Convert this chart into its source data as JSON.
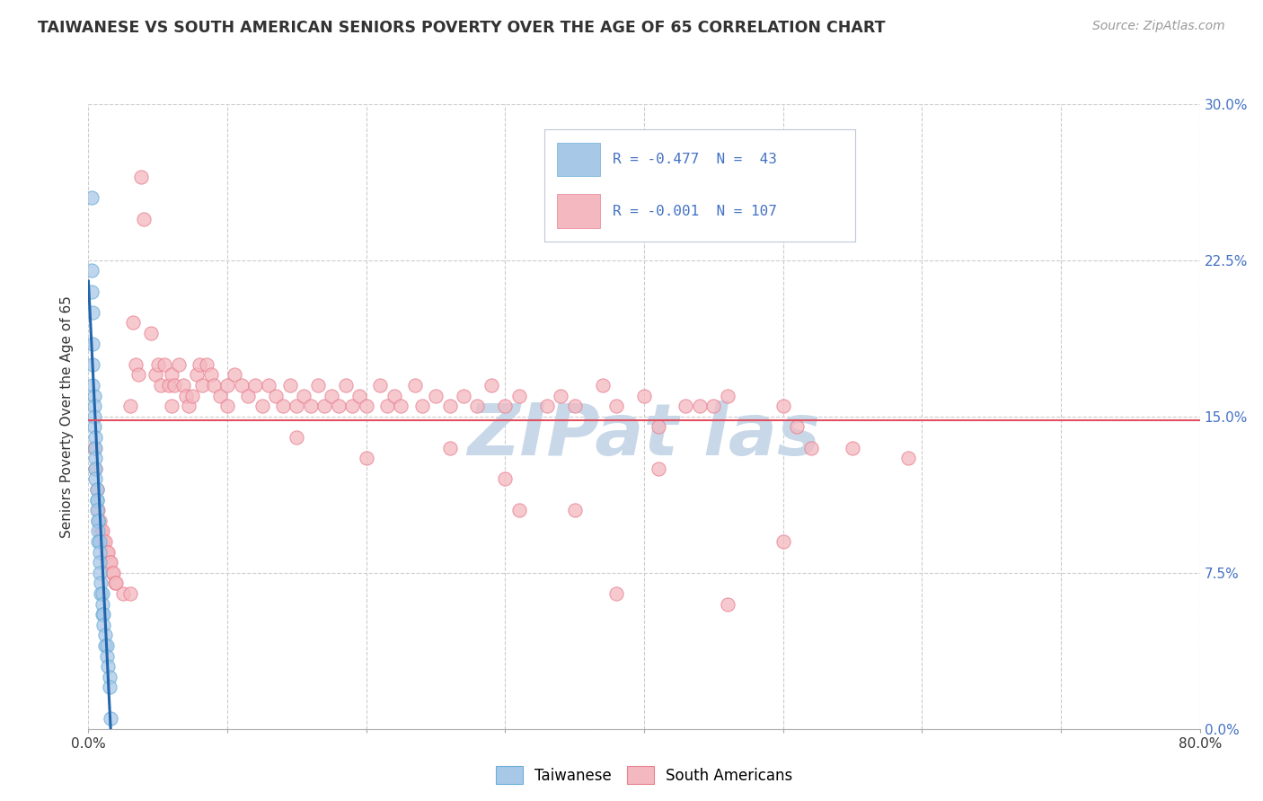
{
  "title": "TAIWANESE VS SOUTH AMERICAN SENIORS POVERTY OVER THE AGE OF 65 CORRELATION CHART",
  "source": "Source: ZipAtlas.com",
  "ylabel": "Seniors Poverty Over the Age of 65",
  "xlim": [
    0,
    0.8
  ],
  "ylim": [
    0,
    0.3
  ],
  "xticks": [
    0.0,
    0.1,
    0.2,
    0.3,
    0.4,
    0.5,
    0.6,
    0.7,
    0.8
  ],
  "xtick_labels": [
    "0.0%",
    "",
    "",
    "",
    "",
    "",
    "",
    "",
    "80.0%"
  ],
  "yticks": [
    0.0,
    0.075,
    0.15,
    0.225,
    0.3
  ],
  "ytick_labels": [
    "0.0%",
    "7.5%",
    "15.0%",
    "22.5%",
    "30.0%"
  ],
  "legend_line1": "R = -0.477  N =  43",
  "legend_line2": "R = -0.001  N = 107",
  "taiwanese_color": "#a8c8e8",
  "taiwanese_edge": "#6baed6",
  "south_american_color": "#f4b8c0",
  "south_american_edge": "#e88090",
  "trend_blue_color": "#2166ac",
  "trend_pink_color": "#e05060",
  "watermark_color": "#c8d8e8",
  "background_color": "#ffffff",
  "grid_color": "#cccccc",
  "legend_box_color": "#e8eef4",
  "legend_text_color": "#4472c4",
  "right_axis_color": "#4472c4",
  "taiwanese_points": [
    [
      0.002,
      0.255
    ],
    [
      0.002,
      0.22
    ],
    [
      0.002,
      0.21
    ],
    [
      0.003,
      0.2
    ],
    [
      0.003,
      0.185
    ],
    [
      0.003,
      0.175
    ],
    [
      0.003,
      0.165
    ],
    [
      0.004,
      0.16
    ],
    [
      0.004,
      0.155
    ],
    [
      0.004,
      0.15
    ],
    [
      0.004,
      0.145
    ],
    [
      0.005,
      0.14
    ],
    [
      0.005,
      0.135
    ],
    [
      0.005,
      0.13
    ],
    [
      0.005,
      0.125
    ],
    [
      0.005,
      0.12
    ],
    [
      0.006,
      0.115
    ],
    [
      0.006,
      0.11
    ],
    [
      0.006,
      0.11
    ],
    [
      0.006,
      0.105
    ],
    [
      0.007,
      0.1
    ],
    [
      0.007,
      0.1
    ],
    [
      0.007,
      0.095
    ],
    [
      0.007,
      0.09
    ],
    [
      0.008,
      0.09
    ],
    [
      0.008,
      0.085
    ],
    [
      0.008,
      0.08
    ],
    [
      0.008,
      0.075
    ],
    [
      0.009,
      0.07
    ],
    [
      0.009,
      0.065
    ],
    [
      0.01,
      0.065
    ],
    [
      0.01,
      0.06
    ],
    [
      0.01,
      0.055
    ],
    [
      0.011,
      0.055
    ],
    [
      0.011,
      0.05
    ],
    [
      0.012,
      0.045
    ],
    [
      0.012,
      0.04
    ],
    [
      0.013,
      0.04
    ],
    [
      0.013,
      0.035
    ],
    [
      0.014,
      0.03
    ],
    [
      0.015,
      0.025
    ],
    [
      0.015,
      0.02
    ],
    [
      0.016,
      0.005
    ]
  ],
  "south_american_points": [
    [
      0.004,
      0.135
    ],
    [
      0.005,
      0.125
    ],
    [
      0.006,
      0.115
    ],
    [
      0.007,
      0.105
    ],
    [
      0.008,
      0.1
    ],
    [
      0.009,
      0.095
    ],
    [
      0.01,
      0.095
    ],
    [
      0.011,
      0.09
    ],
    [
      0.012,
      0.09
    ],
    [
      0.013,
      0.085
    ],
    [
      0.014,
      0.085
    ],
    [
      0.015,
      0.08
    ],
    [
      0.016,
      0.08
    ],
    [
      0.017,
      0.075
    ],
    [
      0.018,
      0.075
    ],
    [
      0.019,
      0.07
    ],
    [
      0.02,
      0.07
    ],
    [
      0.025,
      0.065
    ],
    [
      0.03,
      0.065
    ],
    [
      0.032,
      0.195
    ],
    [
      0.034,
      0.175
    ],
    [
      0.036,
      0.17
    ],
    [
      0.038,
      0.265
    ],
    [
      0.04,
      0.245
    ],
    [
      0.045,
      0.19
    ],
    [
      0.048,
      0.17
    ],
    [
      0.05,
      0.175
    ],
    [
      0.052,
      0.165
    ],
    [
      0.055,
      0.175
    ],
    [
      0.058,
      0.165
    ],
    [
      0.06,
      0.17
    ],
    [
      0.062,
      0.165
    ],
    [
      0.065,
      0.175
    ],
    [
      0.068,
      0.165
    ],
    [
      0.07,
      0.16
    ],
    [
      0.072,
      0.155
    ],
    [
      0.075,
      0.16
    ],
    [
      0.078,
      0.17
    ],
    [
      0.08,
      0.175
    ],
    [
      0.082,
      0.165
    ],
    [
      0.085,
      0.175
    ],
    [
      0.088,
      0.17
    ],
    [
      0.09,
      0.165
    ],
    [
      0.095,
      0.16
    ],
    [
      0.1,
      0.165
    ],
    [
      0.105,
      0.17
    ],
    [
      0.11,
      0.165
    ],
    [
      0.115,
      0.16
    ],
    [
      0.12,
      0.165
    ],
    [
      0.125,
      0.155
    ],
    [
      0.13,
      0.165
    ],
    [
      0.135,
      0.16
    ],
    [
      0.14,
      0.155
    ],
    [
      0.145,
      0.165
    ],
    [
      0.15,
      0.155
    ],
    [
      0.155,
      0.16
    ],
    [
      0.16,
      0.155
    ],
    [
      0.165,
      0.165
    ],
    [
      0.17,
      0.155
    ],
    [
      0.175,
      0.16
    ],
    [
      0.18,
      0.155
    ],
    [
      0.185,
      0.165
    ],
    [
      0.19,
      0.155
    ],
    [
      0.195,
      0.16
    ],
    [
      0.2,
      0.155
    ],
    [
      0.21,
      0.165
    ],
    [
      0.215,
      0.155
    ],
    [
      0.22,
      0.16
    ],
    [
      0.225,
      0.155
    ],
    [
      0.235,
      0.165
    ],
    [
      0.24,
      0.155
    ],
    [
      0.25,
      0.16
    ],
    [
      0.26,
      0.155
    ],
    [
      0.27,
      0.16
    ],
    [
      0.28,
      0.155
    ],
    [
      0.29,
      0.165
    ],
    [
      0.3,
      0.155
    ],
    [
      0.31,
      0.16
    ],
    [
      0.33,
      0.155
    ],
    [
      0.34,
      0.16
    ],
    [
      0.35,
      0.155
    ],
    [
      0.37,
      0.165
    ],
    [
      0.38,
      0.155
    ],
    [
      0.4,
      0.16
    ],
    [
      0.41,
      0.145
    ],
    [
      0.43,
      0.155
    ],
    [
      0.45,
      0.155
    ],
    [
      0.46,
      0.16
    ],
    [
      0.5,
      0.155
    ],
    [
      0.51,
      0.145
    ],
    [
      0.52,
      0.135
    ],
    [
      0.46,
      0.06
    ],
    [
      0.5,
      0.09
    ],
    [
      0.35,
      0.105
    ],
    [
      0.38,
      0.065
    ],
    [
      0.3,
      0.12
    ],
    [
      0.31,
      0.105
    ],
    [
      0.26,
      0.135
    ],
    [
      0.55,
      0.135
    ],
    [
      0.59,
      0.13
    ],
    [
      0.41,
      0.125
    ],
    [
      0.44,
      0.155
    ],
    [
      0.2,
      0.13
    ],
    [
      0.15,
      0.14
    ],
    [
      0.1,
      0.155
    ],
    [
      0.06,
      0.155
    ],
    [
      0.03,
      0.155
    ]
  ],
  "blue_trend_x": [
    0.0,
    0.016
  ],
  "blue_trend_y": [
    0.215,
    0.0
  ],
  "pink_trend_y": 0.148
}
